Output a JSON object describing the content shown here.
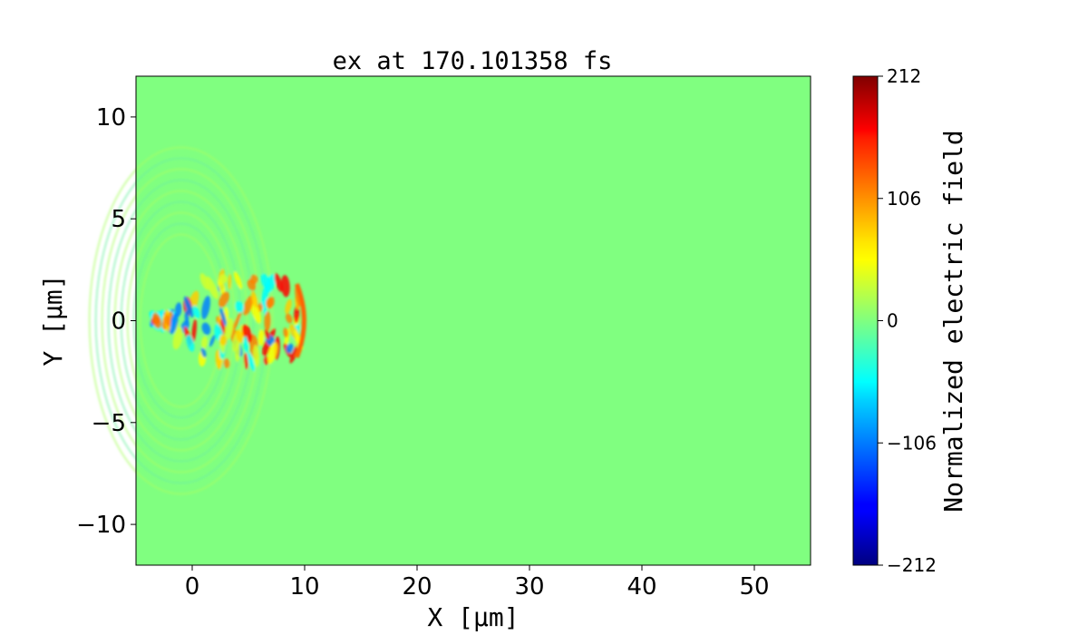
{
  "chart_data": {
    "type": "heatmap",
    "title": "ex at 170.101358 fs",
    "xlabel": "X [μm]",
    "ylabel": "Y [μm]",
    "xlim": [
      -5,
      55
    ],
    "ylim": [
      -12,
      12
    ],
    "x_ticks": [
      0,
      10,
      20,
      30,
      40,
      50
    ],
    "x_tick_labels": [
      "0",
      "10",
      "20",
      "30",
      "40",
      "50"
    ],
    "y_ticks": [
      10,
      5,
      0,
      -5,
      -10
    ],
    "y_tick_labels": [
      "10",
      "5",
      "0",
      "−5",
      "−10"
    ],
    "colormap": "jet",
    "background_value": 0,
    "colorbar": {
      "label": "Normalized electric field",
      "range": [
        -212,
        212
      ],
      "ticks": [
        212,
        106,
        0,
        -106,
        -212
      ],
      "tick_labels": [
        "212",
        "106",
        "0",
        "−106",
        "−212"
      ]
    },
    "field_feature": {
      "description_x_extent": [
        -5,
        10
      ],
      "description_y_extent": [
        -2.5,
        2.5
      ]
    }
  }
}
